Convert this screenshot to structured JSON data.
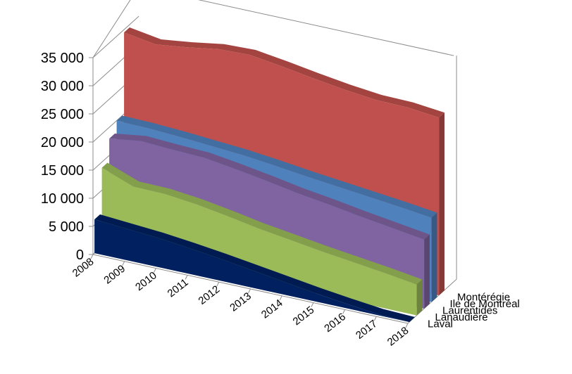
{
  "chart_data": {
    "type": "area",
    "variant": "3d",
    "title": "",
    "xlabel": "",
    "ylabel": "",
    "ylim": [
      0,
      35000
    ],
    "y_ticks": [
      {
        "value": 0,
        "label": "0"
      },
      {
        "value": 5000,
        "label": "5 000"
      },
      {
        "value": 10000,
        "label": "10 000"
      },
      {
        "value": 15000,
        "label": "15 000"
      },
      {
        "value": 20000,
        "label": "20 000"
      },
      {
        "value": 25000,
        "label": "25 000"
      },
      {
        "value": 30000,
        "label": "30 000"
      },
      {
        "value": 35000,
        "label": "35 000"
      }
    ],
    "categories": [
      "2008",
      "2009",
      "2010",
      "2011",
      "2012",
      "2013",
      "2014",
      "2015",
      "2016",
      "2017",
      "2018"
    ],
    "grid": true,
    "legend": "none",
    "series": [
      {
        "name": "Montérégie",
        "color": "#c0504d",
        "values": [
          34500,
          33600,
          34300,
          35200,
          35400,
          34600,
          33700,
          32900,
          32300,
          32200,
          31600
        ]
      },
      {
        "name": "Ile de Montréal",
        "color": "#4f81bd",
        "values": [
          20000,
          19900,
          19600,
          19200,
          18800,
          18200,
          17500,
          16900,
          16300,
          15700,
          15000
        ]
      },
      {
        "name": "Laurentides",
        "color": "#8064a2",
        "values": [
          18000,
          18800,
          18500,
          18300,
          17500,
          16600,
          15600,
          14800,
          13900,
          13100,
          12300
        ]
      },
      {
        "name": "Lanaudière",
        "color": "#9bbb59",
        "values": [
          14000,
          11900,
          11800,
          11200,
          10300,
          9300,
          8500,
          7700,
          7000,
          6300,
          5500
        ]
      },
      {
        "name": "Laval",
        "color": "#002060",
        "values": [
          6000,
          5600,
          5200,
          4600,
          3900,
          3100,
          2300,
          1500,
          800,
          200,
          0
        ]
      }
    ]
  }
}
